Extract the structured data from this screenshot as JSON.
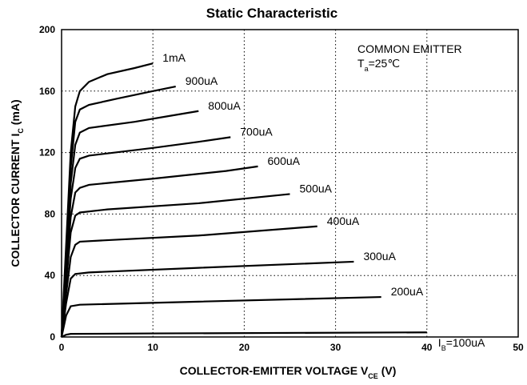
{
  "chart_data": {
    "type": "line",
    "title": "Static Characteristic",
    "annotations": [
      "COMMON EMITTER"
    ],
    "condition_parts": [
      {
        "text": "T"
      },
      {
        "sub": "a"
      },
      {
        "text": "=25℃"
      }
    ],
    "x_label_parts": [
      {
        "text": "COLLECTOR-EMITTER VOLTAGE   V"
      },
      {
        "sub": "CE"
      },
      {
        "text": "   (V)"
      }
    ],
    "y_label_parts": [
      {
        "text": "COLLECTOR CURRENT   I"
      },
      {
        "sub": "C"
      },
      {
        "text": "   (mA)"
      }
    ],
    "xlim": [
      0,
      50
    ],
    "xticks": [
      0,
      10,
      20,
      30,
      40,
      50
    ],
    "ylim": [
      0,
      200
    ],
    "yticks": [
      0,
      40,
      80,
      120,
      160,
      200
    ],
    "grid": true,
    "color": "#000000",
    "series": [
      {
        "name": "1mA",
        "x": [
          0,
          0.5,
          1,
          1.5,
          2,
          3,
          5,
          8,
          10
        ],
        "values": [
          0,
          60,
          120,
          150,
          160,
          166,
          171,
          175,
          178
        ]
      },
      {
        "name": "900uA",
        "x": [
          0,
          0.5,
          1,
          1.5,
          2,
          3,
          6,
          10,
          12.5
        ],
        "values": [
          0,
          55,
          110,
          140,
          148,
          151,
          155,
          160,
          163
        ]
      },
      {
        "name": "800uA",
        "x": [
          0,
          0.5,
          1,
          1.5,
          2,
          3,
          8,
          12,
          15
        ],
        "values": [
          0,
          50,
          100,
          125,
          133,
          136,
          140,
          144,
          147
        ]
      },
      {
        "name": "700uA",
        "x": [
          0,
          0.5,
          1,
          1.5,
          2,
          3,
          10,
          15,
          18.5
        ],
        "values": [
          0,
          45,
          90,
          110,
          116,
          118,
          123,
          127,
          130
        ]
      },
      {
        "name": "600uA",
        "x": [
          0,
          0.5,
          1,
          1.5,
          2,
          3,
          10,
          18,
          21.5
        ],
        "values": [
          0,
          40,
          78,
          94,
          97,
          99,
          103,
          108,
          111
        ]
      },
      {
        "name": "500uA",
        "x": [
          0,
          0.5,
          1,
          1.5,
          2,
          5,
          15,
          25
        ],
        "values": [
          0,
          35,
          68,
          79,
          81,
          83,
          87,
          93
        ]
      },
      {
        "name": "400uA",
        "x": [
          0,
          0.5,
          1,
          1.5,
          2,
          5,
          15,
          28
        ],
        "values": [
          0,
          28,
          52,
          60,
          62,
          63,
          66,
          72
        ]
      },
      {
        "name": "300uA",
        "x": [
          0,
          0.5,
          1,
          1.5,
          3,
          15,
          32
        ],
        "values": [
          0,
          22,
          38,
          41,
          42,
          45,
          49
        ]
      },
      {
        "name": "200uA",
        "x": [
          0,
          0.5,
          1,
          2,
          15,
          35
        ],
        "values": [
          0,
          14,
          20,
          21,
          23,
          26
        ]
      },
      {
        "name_parts": [
          {
            "text": "I"
          },
          {
            "sub": "B"
          },
          {
            "text": "=100uA"
          }
        ],
        "x": [
          0,
          0.5,
          1,
          10,
          40
        ],
        "values": [
          0,
          1.5,
          2,
          2.3,
          3
        ]
      }
    ]
  }
}
